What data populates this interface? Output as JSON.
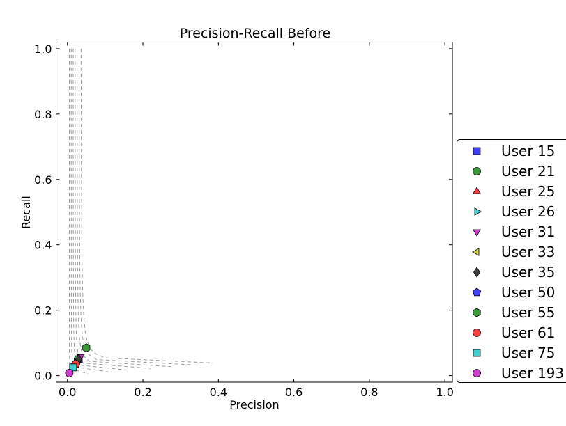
{
  "chart_data": {
    "type": "scatter",
    "title": "Precision-Recall Before",
    "xlabel": "Precision",
    "ylabel": "Recall",
    "xlim": [
      -0.03,
      1.02
    ],
    "ylim": [
      -0.02,
      1.02
    ],
    "x_ticks": [
      "0.0",
      "0.2",
      "0.4",
      "0.6",
      "0.8",
      "1.0"
    ],
    "y_ticks": [
      "0.0",
      "0.2",
      "0.4",
      "0.6",
      "0.8",
      "1.0"
    ],
    "grid": false,
    "legend_position": "right",
    "series": [
      {
        "name": "User 15",
        "marker": "square",
        "color": "#3f3fff",
        "x": 0.03,
        "y": 0.05
      },
      {
        "name": "User 21",
        "marker": "circle",
        "color": "#3a9a3a",
        "x": 0.028,
        "y": 0.05
      },
      {
        "name": "User 25",
        "marker": "triangle-up",
        "color": "#ff3f3f",
        "x": 0.02,
        "y": 0.032
      },
      {
        "name": "User 26",
        "marker": "triangle-right",
        "color": "#3fcfcf",
        "x": 0.025,
        "y": 0.04
      },
      {
        "name": "User 31",
        "marker": "triangle-down",
        "color": "#cf3fcf",
        "x": 0.035,
        "y": 0.058
      },
      {
        "name": "User 33",
        "marker": "triangle-left",
        "color": "#cfcf3f",
        "x": 0.027,
        "y": 0.045
      },
      {
        "name": "User 35",
        "marker": "diamond",
        "color": "#3f3f3f",
        "x": 0.03,
        "y": 0.05
      },
      {
        "name": "User 50",
        "marker": "pentagon",
        "color": "#3f3fff",
        "x": 0.018,
        "y": 0.03
      },
      {
        "name": "User 55",
        "marker": "hexagon",
        "color": "#3a9a3a",
        "x": 0.05,
        "y": 0.085
      },
      {
        "name": "User 61",
        "marker": "circle",
        "color": "#ff3f3f",
        "x": 0.022,
        "y": 0.035
      },
      {
        "name": "User 75",
        "marker": "square",
        "color": "#3fcfcf",
        "x": 0.015,
        "y": 0.025
      },
      {
        "name": "User 193",
        "marker": "circle",
        "color": "#cf3fcf",
        "x": 0.005,
        "y": 0.008
      }
    ]
  }
}
